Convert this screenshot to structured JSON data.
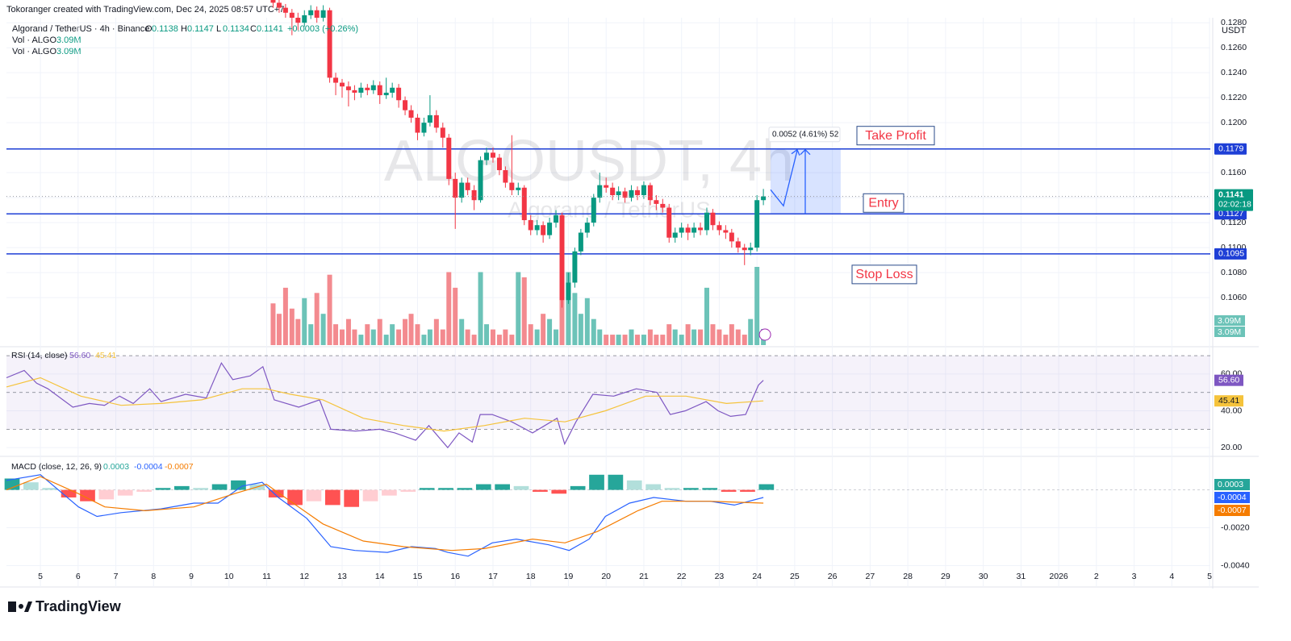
{
  "header": {
    "credit": "Tokoranger created with TradingView.com, Dec 24, 2025 08:57 UTC+7",
    "symbol": "Algorand / TetherUS · 4h · Binance",
    "ohlc_labels": [
      "O",
      "H",
      "L",
      "C"
    ],
    "change": "+0.0003 (+0.26%)",
    "volume_rows": [
      "Vol · ALGO",
      "Vol · ALGO"
    ],
    "currency": "USDT",
    "countdown": "02:02:18"
  },
  "footer": "TradingView",
  "chart_data": [
    {
      "type": "candlestick",
      "watermark": "ALGOUSDT, 4h",
      "watermark_subtitle": "Algorand / TetherUS",
      "xlim": [
        4.1,
        36.02
      ],
      "xticks": [
        5,
        6,
        7,
        8,
        9,
        10,
        11,
        12,
        13,
        14,
        15,
        16,
        17,
        18,
        19,
        20,
        21,
        22,
        23,
        24,
        25,
        26,
        27,
        28,
        29,
        30,
        31,
        {
          "value": 32,
          "label": "2026"
        },
        {
          "value": 33,
          "label": "2"
        },
        {
          "value": 34,
          "label": "3"
        },
        {
          "value": 35,
          "label": "4"
        },
        {
          "value": 36,
          "label": "5"
        }
      ],
      "ylim": [
        0.1022,
        0.1284
      ],
      "yticks": [
        {
          "value": 0.106,
          "label": "0.1060"
        },
        {
          "value": 0.108,
          "label": "0.1080"
        },
        {
          "value": 0.11,
          "label": "0.1100"
        },
        {
          "value": 0.112,
          "label": "0.1120"
        },
        {
          "value": 0.114,
          "label": "0.1140"
        },
        {
          "value": 0.116,
          "label": "0.1160"
        },
        {
          "value": 0.118,
          "label": "0.1180"
        },
        {
          "value": 0.12,
          "label": "0.1200"
        },
        {
          "value": 0.122,
          "label": "0.1220"
        },
        {
          "value": 0.124,
          "label": "0.1240"
        },
        {
          "value": 0.126,
          "label": "0.1260"
        },
        {
          "value": 0.128,
          "label": "0.1280"
        }
      ],
      "up_color": "#089981",
      "down_color": "#f23645",
      "volume_up_color": "#6cc3b8",
      "volume_down_color": "#f38a8f",
      "x": [
        11.17,
        11.33,
        11.5,
        11.67,
        11.83,
        12,
        12.17,
        12.33,
        12.5,
        12.67,
        12.83,
        13,
        13.17,
        13.33,
        13.5,
        13.67,
        13.83,
        14,
        14.17,
        14.33,
        14.5,
        14.67,
        14.83,
        15,
        15.17,
        15.33,
        15.5,
        15.67,
        15.83,
        16,
        16.17,
        16.33,
        16.5,
        16.67,
        16.83,
        17,
        17.17,
        17.33,
        17.5,
        17.67,
        17.83,
        18,
        18.17,
        18.33,
        18.5,
        18.67,
        18.83,
        19,
        19.17,
        19.33,
        19.5,
        19.67,
        19.83,
        20,
        20.17,
        20.33,
        20.5,
        20.67,
        20.83,
        21,
        21.17,
        21.33,
        21.5,
        21.67,
        21.83,
        22,
        22.17,
        22.33,
        22.5,
        22.67,
        22.83,
        23,
        23.17,
        23.33,
        23.5,
        23.67,
        23.83,
        24,
        24.17
      ],
      "open": [
        0.13,
        0.1296,
        0.1292,
        0.1288,
        0.1284,
        0.128,
        0.1286,
        0.129,
        0.1284,
        0.129,
        0.1236,
        0.1232,
        0.1229,
        0.1226,
        0.1224,
        0.1228,
        0.1226,
        0.123,
        0.1222,
        0.1224,
        0.1228,
        0.1218,
        0.121,
        0.1204,
        0.1192,
        0.12,
        0.1206,
        0.1196,
        0.1188,
        0.1155,
        0.114,
        0.1152,
        0.1146,
        0.1138,
        0.117,
        0.1176,
        0.1172,
        0.1162,
        0.1152,
        0.1146,
        0.1148,
        0.1122,
        0.1114,
        0.1118,
        0.111,
        0.112,
        0.1126,
        0.1058,
        0.1072,
        0.1097,
        0.1112,
        0.112,
        0.114,
        0.115,
        0.1148,
        0.1142,
        0.1145,
        0.114,
        0.1146,
        0.1142,
        0.115,
        0.1138,
        0.1135,
        0.1132,
        0.1108,
        0.1112,
        0.1116,
        0.1112,
        0.1116,
        0.1114,
        0.1128,
        0.1118,
        0.1114,
        0.1112,
        0.1105,
        0.11,
        0.1098,
        0.11,
        0.1138
      ],
      "high": [
        0.1304,
        0.1299,
        0.1295,
        0.1291,
        0.1288,
        0.129,
        0.1294,
        0.1293,
        0.1294,
        0.1292,
        0.124,
        0.1235,
        0.1233,
        0.123,
        0.1232,
        0.1231,
        0.1234,
        0.1233,
        0.1236,
        0.1232,
        0.1231,
        0.1221,
        0.1214,
        0.1207,
        0.1204,
        0.1222,
        0.121,
        0.12,
        0.1191,
        0.116,
        0.1156,
        0.1156,
        0.115,
        0.1173,
        0.118,
        0.118,
        0.1175,
        0.1165,
        0.119,
        0.1152,
        0.115,
        0.1126,
        0.1122,
        0.1121,
        0.1124,
        0.113,
        0.1128,
        0.108,
        0.11,
        0.1115,
        0.1124,
        0.1143,
        0.116,
        0.1156,
        0.1152,
        0.1149,
        0.1148,
        0.115,
        0.1149,
        0.1153,
        0.1152,
        0.1142,
        0.1139,
        0.1135,
        0.1116,
        0.112,
        0.1119,
        0.112,
        0.112,
        0.1132,
        0.1131,
        0.1121,
        0.1118,
        0.1115,
        0.1108,
        0.1103,
        0.1104,
        0.1142,
        0.1147
      ],
      "low": [
        0.1292,
        0.1288,
        0.1284,
        0.127,
        0.1274,
        0.1277,
        0.1283,
        0.128,
        0.1281,
        0.1232,
        0.1222,
        0.122,
        0.1213,
        0.1218,
        0.122,
        0.1222,
        0.1223,
        0.1215,
        0.1219,
        0.122,
        0.1212,
        0.1206,
        0.12,
        0.1186,
        0.1189,
        0.1197,
        0.1192,
        0.118,
        0.115,
        0.1115,
        0.1136,
        0.1142,
        0.113,
        0.1136,
        0.1166,
        0.1168,
        0.1158,
        0.1148,
        0.1142,
        0.1142,
        0.1118,
        0.111,
        0.111,
        0.1104,
        0.1107,
        0.1116,
        0.1052,
        0.1055,
        0.1068,
        0.1094,
        0.1108,
        0.1117,
        0.1136,
        0.1144,
        0.1138,
        0.1138,
        0.1136,
        0.1137,
        0.1138,
        0.1139,
        0.1134,
        0.113,
        0.1128,
        0.1104,
        0.1104,
        0.1108,
        0.1106,
        0.1108,
        0.111,
        0.111,
        0.1114,
        0.111,
        0.1107,
        0.11,
        0.1096,
        0.1086,
        0.1094,
        0.1097,
        0.1134
      ],
      "close": [
        0.1296,
        0.1292,
        0.1288,
        0.1284,
        0.128,
        0.1286,
        0.129,
        0.1284,
        0.129,
        0.1236,
        0.1232,
        0.1229,
        0.1226,
        0.1224,
        0.1228,
        0.1226,
        0.123,
        0.1222,
        0.1224,
        0.1228,
        0.1218,
        0.121,
        0.1204,
        0.1192,
        0.12,
        0.1206,
        0.1196,
        0.1188,
        0.1155,
        0.114,
        0.1152,
        0.1146,
        0.1138,
        0.117,
        0.1176,
        0.1172,
        0.1162,
        0.1152,
        0.1146,
        0.1148,
        0.1122,
        0.1114,
        0.1118,
        0.111,
        0.112,
        0.1126,
        0.1058,
        0.1072,
        0.1097,
        0.1112,
        0.112,
        0.114,
        0.115,
        0.1148,
        0.1142,
        0.1145,
        0.114,
        0.1146,
        0.1142,
        0.115,
        0.1138,
        0.1135,
        0.1132,
        0.1108,
        0.1112,
        0.1116,
        0.1112,
        0.1116,
        0.1114,
        0.1128,
        0.1118,
        0.1114,
        0.1112,
        0.1105,
        0.11,
        0.1098,
        0.11,
        0.1138,
        0.1141
      ],
      "volume": [
        8000000,
        6000000,
        11000000,
        7000000,
        5000000,
        9000000,
        4000000,
        10000000,
        6000000,
        13500000,
        4000000,
        3000000,
        5000000,
        3000000,
        2000000,
        4000000,
        3000000,
        5000000,
        2000000,
        4000000,
        3000000,
        5000000,
        6000000,
        4000000,
        2000000,
        3000000,
        5000000,
        3000000,
        14000000,
        11000000,
        5000000,
        3000000,
        2000000,
        14000000,
        4000000,
        3000000,
        2000000,
        3000000,
        2000000,
        14000000,
        13000000,
        4000000,
        3000000,
        6000000,
        5000000,
        3000000,
        16000000,
        14000000,
        10000000,
        6000000,
        9000000,
        5000000,
        3000000,
        2000000,
        2000000,
        2000000,
        2000000,
        3000000,
        2000000,
        2000000,
        3000000,
        2000000,
        2000000,
        4000000,
        3000000,
        2000000,
        4000000,
        3000000,
        3000000,
        11000000,
        4000000,
        3000000,
        2000000,
        4000000,
        3000000,
        2000000,
        5000000,
        15000000,
        3090000
      ],
      "volume_ylim": [
        0,
        15000000
      ],
      "volume_last_label": "3.09M",
      "levels": [
        {
          "label": "Take Profit",
          "value": 0.1179
        },
        {
          "label": "Entry",
          "value": 0.1127
        },
        {
          "label": "Stop Loss",
          "value": 0.1095
        }
      ],
      "level_color": "#1e3fd6",
      "level_text_color": "#f23645",
      "measure": {
        "xlim": [
          24.36,
          26.22
        ],
        "label": "0.0052 (4.61%) 52"
      }
    },
    {
      "type": "line",
      "title": "RSI (14, close)",
      "ylim": [
        17,
        74
      ],
      "yticks": [
        {
          "value": 20,
          "label": "20.00"
        },
        {
          "value": 40,
          "label": "40.00"
        },
        {
          "value": 60,
          "label": "60.00"
        }
      ],
      "band": [
        30,
        70
      ],
      "middle": 50,
      "series": [
        {
          "color": "#7e57c2",
          "x": [
            4.1,
            4.57,
            4.9,
            5.2,
            5.86,
            6.3,
            6.7,
            7.1,
            7.46,
            7.9,
            8.2,
            8.85,
            9.4,
            9.8,
            10.1,
            10.56,
            10.9,
            11.2,
            11.85,
            12.4,
            12.7,
            13.35,
            14,
            14.4,
            14.95,
            15.3,
            15.8,
            16.1,
            16.45,
            16.66,
            16.98,
            17.5,
            18.05,
            18.7,
            18.9,
            19.2,
            19.65,
            20.2,
            20.8,
            21.35,
            21.7,
            22.1,
            22.65,
            22.97,
            23.3,
            23.7,
            24.04,
            24.17
          ],
          "values": [
            58,
            62,
            55,
            52,
            42,
            44,
            43,
            48,
            44,
            52,
            45,
            49,
            47,
            66,
            57,
            59,
            64,
            46,
            42,
            46,
            30,
            29,
            30,
            28,
            24,
            32,
            20,
            28,
            23,
            38,
            38,
            34,
            28,
            36,
            22,
            34,
            49,
            48,
            52,
            50,
            38,
            40,
            45,
            40,
            37,
            38,
            54,
            56.6
          ],
          "last_label": "56.60"
        },
        {
          "color": "#f5c33b",
          "x": [
            4.1,
            5,
            6.07,
            7.14,
            8.2,
            9.28,
            10.35,
            10.99,
            11.63,
            12.49,
            13.56,
            14.63,
            15.7,
            16.77,
            17.84,
            18.91,
            19.98,
            21.05,
            22.12,
            23.19,
            24.17
          ],
          "values": [
            53,
            58,
            48,
            43,
            44,
            46,
            52,
            52,
            49,
            46,
            36,
            32,
            29,
            32,
            36,
            34,
            40,
            48,
            48,
            44,
            45.41
          ],
          "last_label": "45.41"
        }
      ]
    },
    {
      "type": "macd",
      "title": "MACD (close, 12, 26, 9)",
      "ylim": [
        -0.005,
        0.0016
      ],
      "yticks": [
        {
          "value": -0.002,
          "label": "-0.0020"
        },
        {
          "value": -0.004,
          "label": "-0.0040"
        }
      ],
      "histogram": {
        "x": [
          4.25,
          4.75,
          5.25,
          5.75,
          6.25,
          6.75,
          7.25,
          7.75,
          8.25,
          8.75,
          9.25,
          9.75,
          10.25,
          10.75,
          11.25,
          11.75,
          12.25,
          12.75,
          13.25,
          13.75,
          14.25,
          14.75,
          15.25,
          15.75,
          16.25,
          16.75,
          17.25,
          17.75,
          18.25,
          18.75,
          19.25,
          19.75,
          20.25,
          20.75,
          21.25,
          21.75,
          22.25,
          22.75,
          23.25,
          23.75,
          24.25
        ],
        "values": [
          0.0006,
          0.0004,
          0.0001,
          -0.0004,
          -0.0006,
          -0.0005,
          -0.0003,
          -0.0001,
          0.0001,
          0.0002,
          0.0001,
          0.0003,
          0.0005,
          0.0003,
          -0.0004,
          -0.0008,
          -0.0006,
          -0.0008,
          -0.0009,
          -0.0006,
          -0.0003,
          -0.0001,
          0.0001,
          0.0001,
          0.0001,
          0.0003,
          0.0003,
          0.0002,
          -0.0001,
          -0.0002,
          0.0002,
          0.0008,
          0.0008,
          0.0005,
          0.0003,
          0.0001,
          0.0001,
          0.0001,
          -0.0001,
          -0.0001,
          0.0003
        ],
        "colors": [
          "#26a69a",
          "#b2dfdb",
          "#ff5252",
          "#ffcdd2"
        ]
      },
      "series": [
        {
          "color": "#2962ff",
          "x": [
            4.1,
            5,
            6.01,
            6.5,
            7.14,
            8.2,
            9.07,
            9.71,
            10.35,
            10.88,
            11.31,
            12.06,
            12.7,
            13.34,
            14.2,
            14.84,
            15.48,
            15.8,
            16.34,
            16.98,
            17.62,
            18.48,
            19.02,
            19.55,
            19.98,
            20.62,
            21.26,
            22.12,
            22.76,
            23.4,
            24.17
          ],
          "values": [
            0.0005,
            0.0008,
            -0.0009,
            -0.0014,
            -0.0012,
            -0.001,
            -0.0007,
            -0.0007,
            0.0002,
            0.0004,
            -0.0004,
            -0.0015,
            -0.003,
            -0.0032,
            -0.0033,
            -0.003,
            -0.0031,
            -0.0033,
            -0.0035,
            -0.0028,
            -0.0026,
            -0.0029,
            -0.0032,
            -0.0026,
            -0.0014,
            -0.0007,
            -0.0004,
            -0.0006,
            -0.0006,
            -0.0008,
            -0.0004
          ]
        },
        {
          "color": "#f57c00",
          "x": [
            4.1,
            5,
            6.01,
            6.71,
            7.78,
            9.07,
            10.14,
            10.99,
            11.63,
            12.49,
            13.56,
            14.63,
            15.91,
            16.77,
            18.05,
            18.91,
            19.77,
            20.84,
            21.48,
            22.76,
            24.17
          ],
          "values": [
            0,
            0.0007,
            -0.0002,
            -0.0009,
            -0.0011,
            -0.0009,
            -0.0002,
            0.0003,
            -0.0006,
            -0.0018,
            -0.0027,
            -0.003,
            -0.0032,
            -0.0031,
            -0.0026,
            -0.0028,
            -0.0022,
            -0.0011,
            -0.0006,
            -0.0006,
            -0.0007
          ]
        }
      ]
    }
  ]
}
